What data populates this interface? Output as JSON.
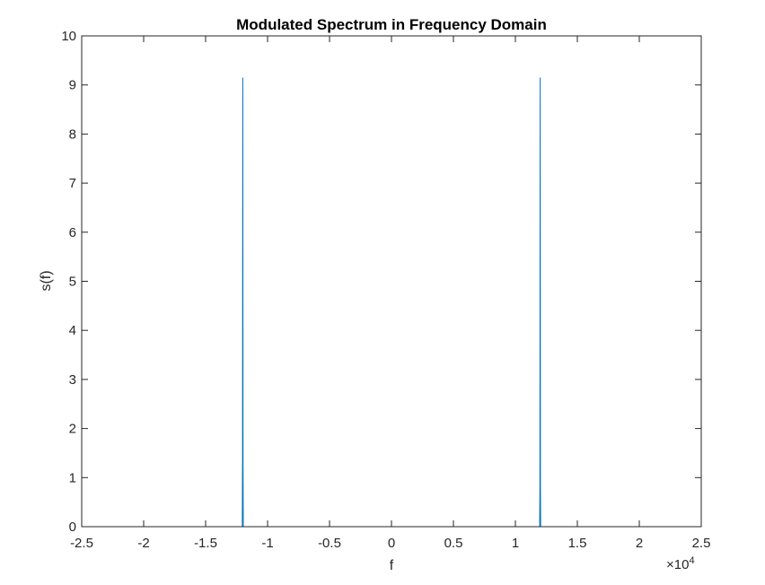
{
  "chart_data": {
    "type": "line",
    "title": "Modulated Spectrum in Frequency Domain",
    "xlabel": "f",
    "ylabel": "s(f)",
    "xlim": [
      -25000,
      25000
    ],
    "ylim": [
      0,
      10
    ],
    "x_exponent_label": "×10",
    "x_exponent_power": "4",
    "x_ticks": [
      -25000,
      -20000,
      -15000,
      -10000,
      -5000,
      0,
      5000,
      10000,
      15000,
      20000,
      25000
    ],
    "x_tick_labels": [
      "-2.5",
      "-2",
      "-1.5",
      "-1",
      "-0.5",
      "0",
      "0.5",
      "1",
      "1.5",
      "2",
      "2.5"
    ],
    "y_ticks": [
      0,
      1,
      2,
      3,
      4,
      5,
      6,
      7,
      8,
      9,
      10
    ],
    "y_tick_labels": [
      "0",
      "1",
      "2",
      "3",
      "4",
      "5",
      "6",
      "7",
      "8",
      "9",
      "10"
    ],
    "grid": false,
    "series": [
      {
        "color": "#0072BD",
        "x": [
          -24000,
          -12040,
          -12020,
          -12010,
          -12000,
          -11990,
          -11980,
          -11960,
          11960,
          11980,
          11990,
          12000,
          12010,
          12020,
          12040,
          24000
        ],
        "y": [
          0,
          0,
          1.3,
          5.5,
          9.15,
          5.5,
          1.3,
          0,
          0,
          0.8,
          5.5,
          9.15,
          5.5,
          0.8,
          0,
          0
        ]
      }
    ]
  }
}
